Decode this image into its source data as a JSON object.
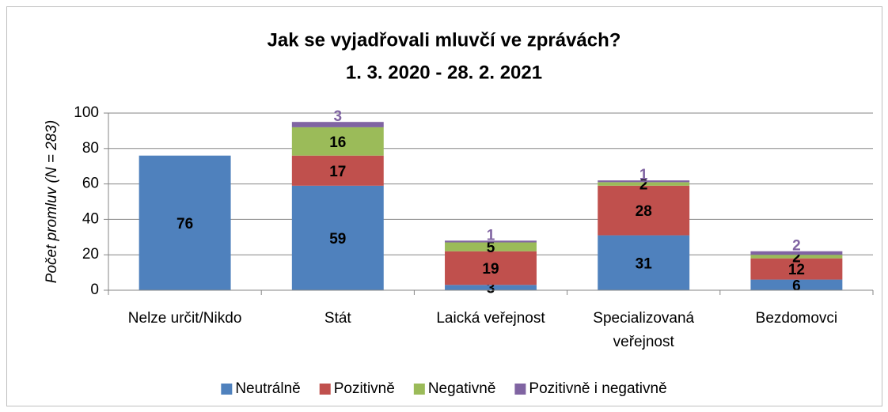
{
  "chart_data": {
    "type": "stacked_bar",
    "title": "Jak se vyjadřovali mluvčí ve zprávách?",
    "subtitle": "1. 3. 2020 - 28. 2. 2021",
    "y_label": "Počet promluv (N = 283)",
    "categories": [
      "Nelze určit/Nikdo",
      "Stát",
      "Laická veřejnost",
      "Specializovaná veřejnost",
      "Bezdomovci"
    ],
    "series": [
      {
        "name": "Neutrálně",
        "color": "#4f81bd",
        "values": [
          76,
          59,
          3,
          31,
          6
        ]
      },
      {
        "name": "Pozitivně",
        "color": "#c0504d",
        "values": [
          null,
          17,
          19,
          28,
          12
        ]
      },
      {
        "name": "Negativně",
        "color": "#9bbb59",
        "values": [
          null,
          16,
          5,
          2,
          2
        ]
      },
      {
        "name": "Pozitivně i negativně",
        "color": "#8064a2",
        "values": [
          null,
          3,
          1,
          1,
          2
        ]
      }
    ],
    "ylim": [
      0,
      100
    ],
    "yticks": [
      0,
      20,
      40,
      60,
      80,
      100
    ],
    "grid": true,
    "legend": "bottom"
  }
}
